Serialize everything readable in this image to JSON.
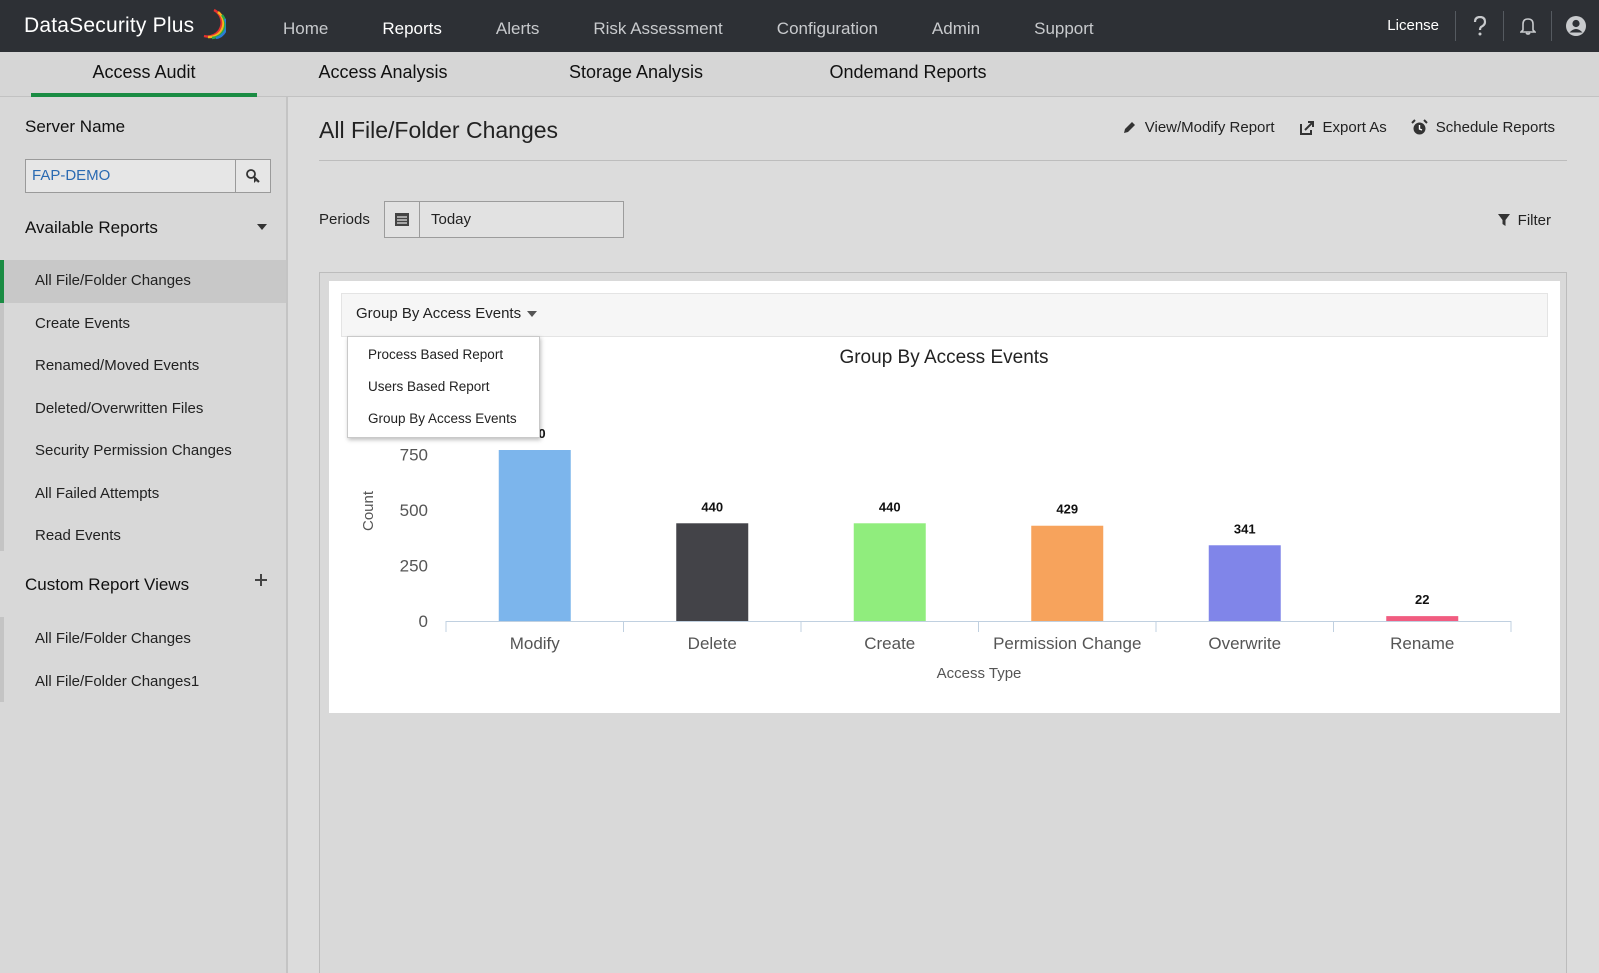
{
  "app": {
    "brand": "DataSecurity Plus",
    "top_nav": [
      "Home",
      "Reports",
      "Alerts",
      "Risk Assessment",
      "Configuration",
      "Admin",
      "Support"
    ],
    "active_top_nav": "Reports",
    "license": "License",
    "icons": [
      "help-icon",
      "bell-icon",
      "user-icon"
    ]
  },
  "sub_nav": {
    "tabs": [
      "Access Audit",
      "Access Analysis",
      "Storage Analysis",
      "Ondemand Reports"
    ],
    "active": "Access Audit"
  },
  "sidebar": {
    "server_heading": "Server Name",
    "server_value": "FAP-DEMO",
    "available_heading": "Available Reports",
    "available_items": [
      "All File/Folder Changes",
      "Create Events",
      "Renamed/Moved Events",
      "Deleted/Overwritten Files",
      "Security Permission Changes",
      "All Failed Attempts",
      "Read Events"
    ],
    "active_item": "All File/Folder Changes",
    "custom_heading": "Custom Report Views",
    "custom_items": [
      "All File/Folder Changes",
      "All File/Folder Changes1"
    ]
  },
  "main": {
    "title": "All File/Folder Changes",
    "actions": {
      "view_modify": "View/Modify Report",
      "export": "Export As",
      "schedule": "Schedule Reports"
    },
    "periods_label": "Periods",
    "periods_value": "Today",
    "filter": "Filter",
    "group_by_selected": "Group By Access Events",
    "group_by_options": [
      "Process Based Report",
      "Users Based Report",
      "Group By Access Events"
    ]
  },
  "chart_data": {
    "type": "bar",
    "title": "Group By Access Events",
    "xlabel": "Access Type",
    "ylabel": "Count",
    "categories": [
      "Modify",
      "Delete",
      "Create",
      "Permission Change",
      "Overwrite",
      "Rename"
    ],
    "values": [
      770,
      440,
      440,
      429,
      341,
      22
    ],
    "colors": [
      "#7cb5ec",
      "#434348",
      "#90ed7d",
      "#f7a35c",
      "#8085e9",
      "#f15c80"
    ],
    "yticks": [
      0,
      250,
      500,
      750
    ],
    "ylim": [
      0,
      770
    ],
    "grid": false,
    "legend": "none"
  }
}
